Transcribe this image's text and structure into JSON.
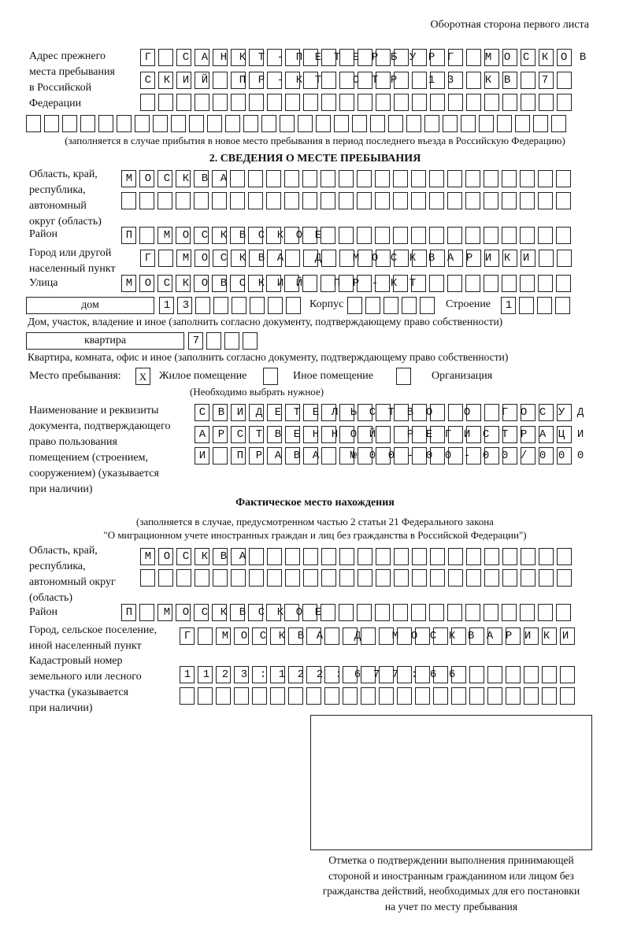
{
  "header": {
    "page_side": "Оборотная сторона первого листа"
  },
  "previous_address": {
    "label": "Адрес прежнего\nместа пребывания\nв Российской\nФедерации",
    "row1": "Г САНКТ-ПЕТЕРБУРГ МОСКОВ",
    "row2": "СКИЙ ПР-КТ СТР 13 КВ 7",
    "row3": "",
    "row4": "",
    "note": "(заполняется в случае прибытия в новое место пребывания в период последнего въезда в Российскую Федерацию)"
  },
  "section2": {
    "title": "2. СВЕДЕНИЯ О МЕСТЕ ПРЕБЫВАНИЯ",
    "region_label": "Область, край,\nреспублика,\nавтономный\nокруг (область)",
    "region_row1": "МОСКВА",
    "region_row2": "",
    "district_label": "Район",
    "district": "П МОСКВСКОЕ",
    "city_label": "Город или другой\nнаселенный пункт",
    "city": "Г МОСКВА Д МОСКВАРИКИ",
    "street_label": "Улица",
    "street": "МОСКОВСКИЙ ПР-КТ",
    "house_type": "дом",
    "house_number": "13",
    "building_label": "Корпус",
    "building": "",
    "structure_label": "Строение",
    "structure": "1",
    "house_note": "Дом, участок, владение и иное (заполнить согласно документу, подтверждающему право собственности)",
    "apartment_type": "квартира",
    "apartment_number": "7",
    "apartment_note": "Квартира, комната, офис и иное (заполнить согласно документу, подтверждающему право собственности)",
    "stay_place_label": "Место пребывания:",
    "stay_options": [
      {
        "label": "Жилое помещение",
        "mark": "X",
        "checked": true
      },
      {
        "label": "Иное помещение",
        "mark": "",
        "checked": false
      },
      {
        "label": "Организация",
        "mark": "",
        "checked": false
      }
    ],
    "stay_note": "(Необходимо выбрать нужное)",
    "doc_label": "Наименование и реквизиты\nдокумента, подтверждающего\nправо пользования\nпомещением (строением,\nсооружением) (указывается\nпри наличии)",
    "doc_row1": "СВИДЕТЕЛЬСТВО О ГОСУД",
    "doc_row2": "АРСТВЕННОЙ РЕГИСТРАЦИ",
    "doc_row3": "И ПРАВА №00-00-00/000"
  },
  "actual": {
    "title": "Фактическое место нахождения",
    "subtitle1": "(заполняется в случае, предусмотренном частью 2 статьи 21 Федерального закона",
    "subtitle2": "\"О миграционном учете иностранных граждан и лиц без гражданства в Российской Федерации\")",
    "region_label": "Область, край,\nреспублика,\nавтономный округ\n(область)",
    "region_row1": "МОСКВА",
    "region_row2": "",
    "district_label": "Район",
    "district": "П МОСКВСКОЕ",
    "city_label": "Город, сельское поселение,\nиной населенный пункт",
    "city": "Г МОСКВА Д МОСКВАРИКИ",
    "cadastral_label": "Кадастровый номер\nземельного или лесного\nучастка (указывается\nпри наличии)",
    "cadastral_row1": "1123:122:677:66",
    "cadastral_row2": ""
  },
  "confirmation": {
    "caption": "Отметка о подтверждении выполнения принимающей\nстороной и иностранным гражданином или лицом без\nгражданства действий, необходимых для его постановки\nна учет по месту пребывания"
  }
}
